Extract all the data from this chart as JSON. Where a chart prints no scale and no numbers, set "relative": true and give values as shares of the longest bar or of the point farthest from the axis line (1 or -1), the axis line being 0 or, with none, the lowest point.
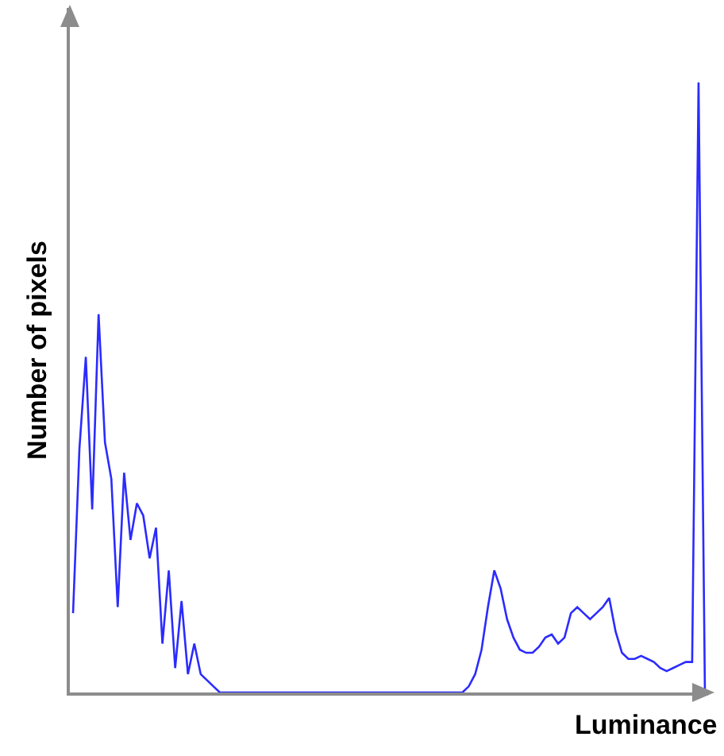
{
  "chart_data": {
    "type": "line",
    "relative": true,
    "xlabel": "Luminance",
    "ylabel": "Number of pixels",
    "marker": "none",
    "line_style": "solid",
    "categories": [
      null,
      null,
      null,
      null,
      null,
      null,
      null,
      null,
      null,
      null,
      null,
      null,
      null,
      null,
      null,
      null,
      null,
      null,
      null,
      null,
      null,
      null,
      null,
      null,
      null,
      null,
      null,
      null,
      null,
      null,
      null,
      null,
      null,
      null,
      null,
      null,
      null,
      null,
      null,
      null,
      null,
      null,
      null,
      null,
      null,
      null,
      null,
      null,
      null,
      null,
      null,
      null,
      null,
      null,
      null,
      null,
      null,
      null,
      null,
      null,
      null,
      null,
      null,
      null,
      null,
      null,
      null,
      null,
      null,
      null,
      null,
      null,
      null,
      null,
      null,
      null,
      null,
      null,
      null,
      null,
      null,
      null,
      null,
      null,
      null,
      null,
      null,
      null,
      null,
      null,
      null,
      null,
      null,
      null,
      null,
      null,
      null,
      null,
      null,
      null
    ],
    "series": [
      {
        "color": "#2b2bff",
        "values": [
          0.13,
          0.4,
          0.55,
          0.3,
          0.62,
          0.41,
          0.35,
          0.14,
          0.36,
          0.25,
          0.31,
          0.29,
          0.22,
          0.27,
          0.08,
          0.2,
          0.04,
          0.15,
          0.03,
          0.08,
          0.03,
          0.02,
          0.01,
          0,
          0,
          0,
          0,
          0,
          0,
          0,
          0,
          0,
          0,
          0,
          0,
          0,
          0,
          0,
          0,
          0,
          0,
          0,
          0,
          0,
          0,
          0,
          0,
          0,
          0,
          0,
          0,
          0,
          0,
          0,
          0,
          0,
          0,
          0,
          0,
          0,
          0,
          0,
          0.01,
          0.03,
          0.07,
          0.14,
          0.2,
          0.17,
          0.12,
          0.09,
          0.07,
          0.065,
          0.065,
          0.075,
          0.09,
          0.095,
          0.08,
          0.09,
          0.13,
          0.14,
          0.13,
          0.12,
          0.13,
          0.14,
          0.155,
          0.1,
          0.065,
          0.055,
          0.055,
          0.06,
          0.055,
          0.05,
          0.04,
          0.035,
          0.04,
          0.045,
          0.05,
          0.05,
          1,
          0
        ]
      }
    ]
  }
}
